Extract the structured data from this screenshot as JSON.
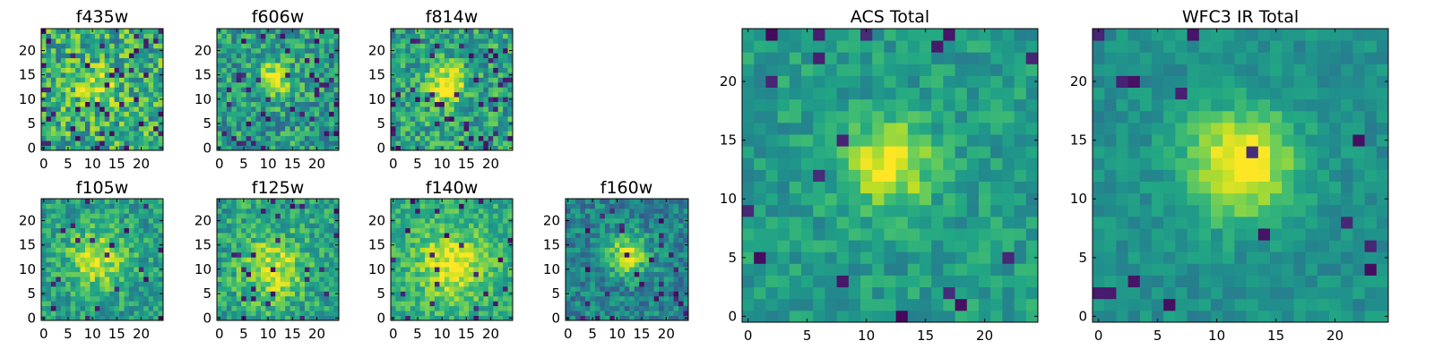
{
  "chart_data": {
    "type": "heatmap",
    "colormap": "viridis",
    "grid_size": 25,
    "panels": [
      {
        "id": "f435w",
        "title": "f435w",
        "xlim": [
          0,
          24
        ],
        "ylim": [
          0,
          24
        ],
        "xticks": [
          "0",
          "5",
          "10",
          "15",
          "20"
        ],
        "yticks": [
          "0",
          "5",
          "10",
          "15",
          "20"
        ],
        "peak": [
          11,
          13
        ],
        "sigma": 3.0,
        "amplitude": 0.25,
        "noise": 0.55,
        "base": 0.62,
        "dark_fraction": 0.07,
        "seed": 11
      },
      {
        "id": "f606w",
        "title": "f606w",
        "xlim": [
          0,
          24
        ],
        "ylim": [
          0,
          24
        ],
        "xticks": [
          "0",
          "5",
          "10",
          "15",
          "20"
        ],
        "yticks": [
          "0",
          "5",
          "10",
          "15",
          "20"
        ],
        "peak": [
          11,
          14
        ],
        "sigma": 2.5,
        "amplitude": 0.45,
        "noise": 0.45,
        "base": 0.55,
        "dark_fraction": 0.06,
        "seed": 23
      },
      {
        "id": "f814w",
        "title": "f814w",
        "xlim": [
          0,
          24
        ],
        "ylim": [
          0,
          24
        ],
        "xticks": [
          "0",
          "5",
          "10",
          "15",
          "20"
        ],
        "yticks": [
          "0",
          "5",
          "10",
          "15",
          "20"
        ],
        "peak": [
          11,
          13
        ],
        "sigma": 2.6,
        "amplitude": 0.45,
        "noise": 0.45,
        "base": 0.58,
        "dark_fraction": 0.07,
        "seed": 37
      },
      {
        "id": "f105w",
        "title": "f105w",
        "xlim": [
          0,
          24
        ],
        "ylim": [
          0,
          24
        ],
        "xticks": [
          "0",
          "5",
          "10",
          "15",
          "20"
        ],
        "yticks": [
          "0",
          "5",
          "10",
          "15",
          "20"
        ],
        "peak": [
          11,
          12
        ],
        "sigma": 4.5,
        "amplitude": 0.35,
        "noise": 0.35,
        "base": 0.55,
        "dark_fraction": 0.04,
        "seed": 41
      },
      {
        "id": "f125w",
        "title": "f125w",
        "xlim": [
          0,
          24
        ],
        "ylim": [
          0,
          24
        ],
        "xticks": [
          "0",
          "5",
          "10",
          "15",
          "20"
        ],
        "yticks": [
          "0",
          "5",
          "10",
          "15",
          "20"
        ],
        "peak": [
          11,
          10
        ],
        "sigma": 4.5,
        "amplitude": 0.35,
        "noise": 0.38,
        "base": 0.58,
        "dark_fraction": 0.05,
        "seed": 53
      },
      {
        "id": "f140w",
        "title": "f140w",
        "xlim": [
          0,
          24
        ],
        "ylim": [
          0,
          24
        ],
        "xticks": [
          "0",
          "5",
          "10",
          "15",
          "20"
        ],
        "yticks": [
          "0",
          "5",
          "10",
          "15",
          "20"
        ],
        "peak": [
          12,
          11
        ],
        "sigma": 5.0,
        "amplitude": 0.35,
        "noise": 0.3,
        "base": 0.62,
        "dark_fraction": 0.03,
        "seed": 67
      },
      {
        "id": "f160w",
        "title": "f160w",
        "xlim": [
          0,
          24
        ],
        "ylim": [
          0,
          24
        ],
        "xticks": [
          "0",
          "5",
          "10",
          "15",
          "20"
        ],
        "yticks": [
          "0",
          "5",
          "10",
          "15",
          "20"
        ],
        "peak": [
          12,
          13
        ],
        "sigma": 2.8,
        "amplitude": 0.5,
        "noise": 0.35,
        "base": 0.45,
        "dark_fraction": 0.05,
        "seed": 79
      },
      {
        "id": "acs-total",
        "title": "ACS Total",
        "xlim": [
          0,
          24
        ],
        "ylim": [
          0,
          24
        ],
        "xticks": [
          "0",
          "5",
          "10",
          "15",
          "20"
        ],
        "yticks": [
          "0",
          "5",
          "10",
          "15",
          "20"
        ],
        "peak": [
          12,
          13
        ],
        "sigma": 2.5,
        "amplitude": 0.45,
        "noise": 0.25,
        "base": 0.55,
        "dark_fraction": 0.035,
        "seed": 97
      },
      {
        "id": "wfc3-ir-total",
        "title": "WFC3 IR Total",
        "xlim": [
          0,
          24
        ],
        "ylim": [
          0,
          24
        ],
        "xticks": [
          "0",
          "5",
          "10",
          "15",
          "20"
        ],
        "yticks": [
          "0",
          "5",
          "10",
          "15",
          "20"
        ],
        "peak": [
          12,
          13
        ],
        "sigma": 3.2,
        "amplitude": 0.55,
        "noise": 0.18,
        "base": 0.5,
        "dark_fraction": 0.02,
        "seed": 113
      }
    ]
  }
}
